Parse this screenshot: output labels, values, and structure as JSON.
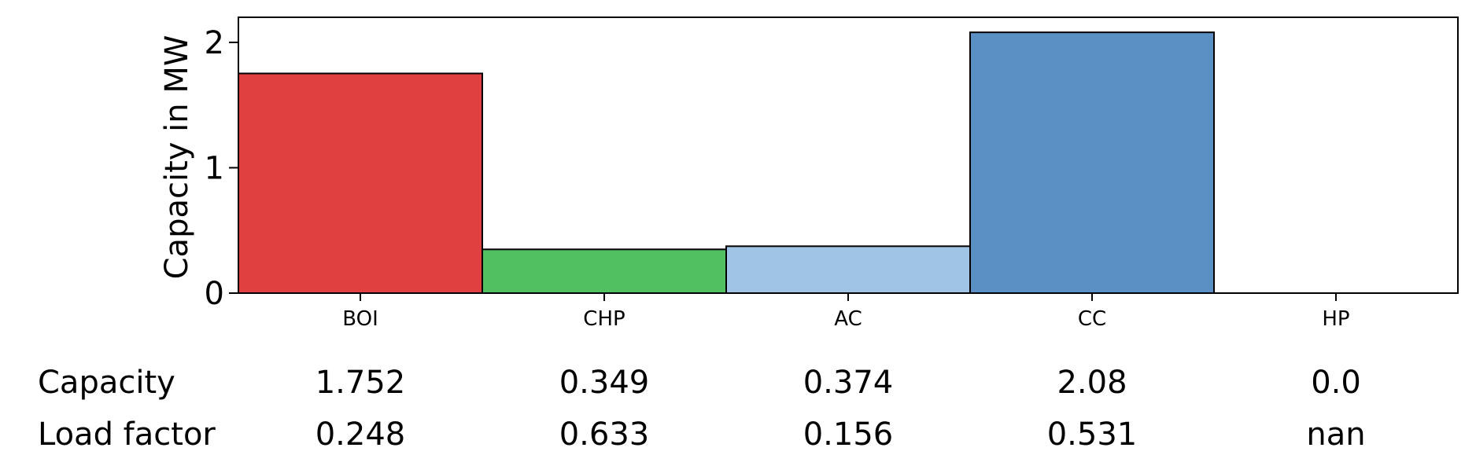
{
  "chart_data": {
    "type": "bar",
    "categories": [
      "BOI",
      "CHP",
      "AC",
      "CC",
      "HP"
    ],
    "values": [
      1.752,
      0.349,
      0.374,
      2.08,
      0.0
    ],
    "colors": [
      "#e04040",
      "#50c060",
      "#a0c4e6",
      "#5b90c4",
      "#ffffff"
    ],
    "ylabel": "Capacity in MW",
    "ylim": [
      0,
      2.2
    ],
    "yticks": [
      0,
      1,
      2
    ],
    "grid": false
  },
  "table": {
    "rows": [
      {
        "label": "Capacity",
        "values": [
          "1.752",
          "0.349",
          "0.374",
          "2.08",
          "0.0"
        ]
      },
      {
        "label": "Load factor",
        "values": [
          "0.248",
          "0.633",
          "0.156",
          "0.531",
          "nan"
        ]
      }
    ]
  }
}
